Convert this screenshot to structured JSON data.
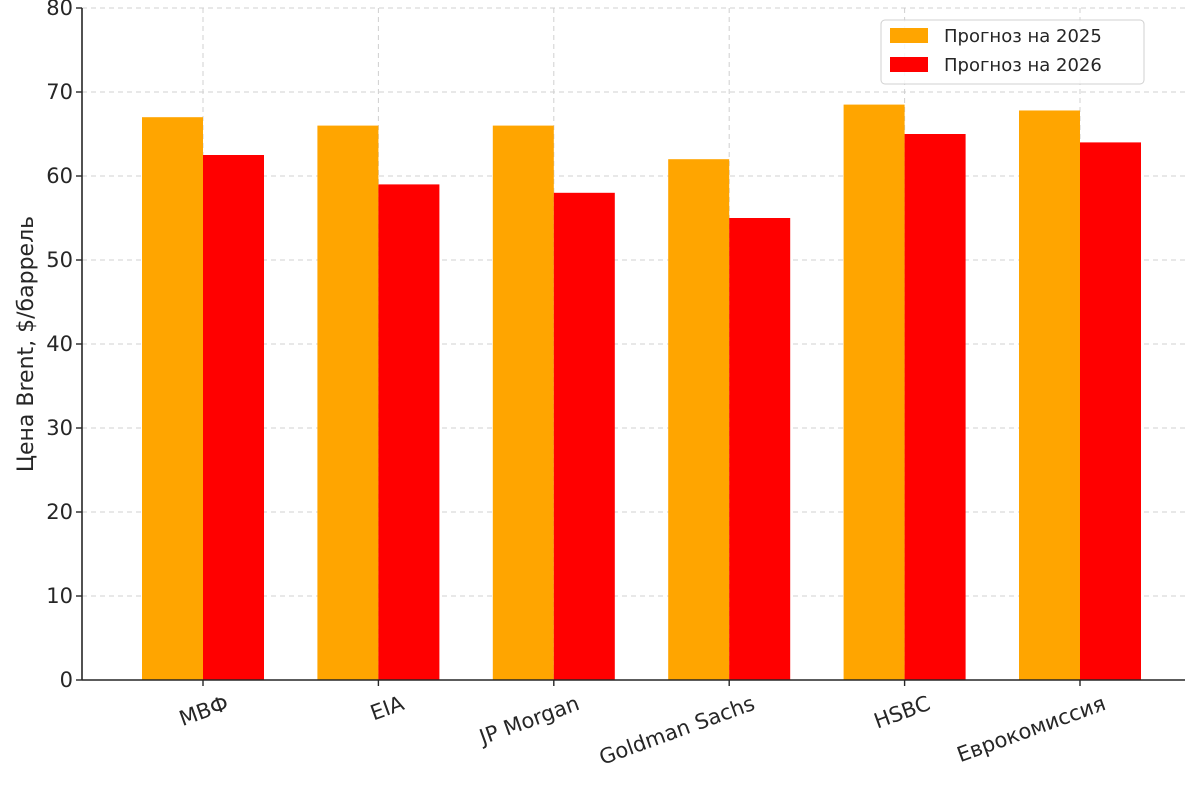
{
  "chart_data": {
    "type": "bar",
    "title": "",
    "xlabel": "",
    "ylabel": "Цена Brent, $/баррель",
    "ylim": [
      0,
      80
    ],
    "yticks": [
      0,
      10,
      20,
      30,
      40,
      50,
      60,
      70,
      80
    ],
    "grid": true,
    "legend_position": "top-right",
    "categories": [
      "МВФ",
      "EIA",
      "JP Morgan",
      "Goldman Sachs",
      "HSBC",
      "Еврокомиссия"
    ],
    "series": [
      {
        "name": "Прогноз на 2025",
        "color": "#FFA500",
        "values": [
          67,
          66,
          66,
          62,
          68.5,
          67.8
        ]
      },
      {
        "name": "Прогноз на 2026",
        "color": "#FF0000",
        "values": [
          62.5,
          59,
          58,
          55,
          65,
          64
        ]
      }
    ]
  }
}
